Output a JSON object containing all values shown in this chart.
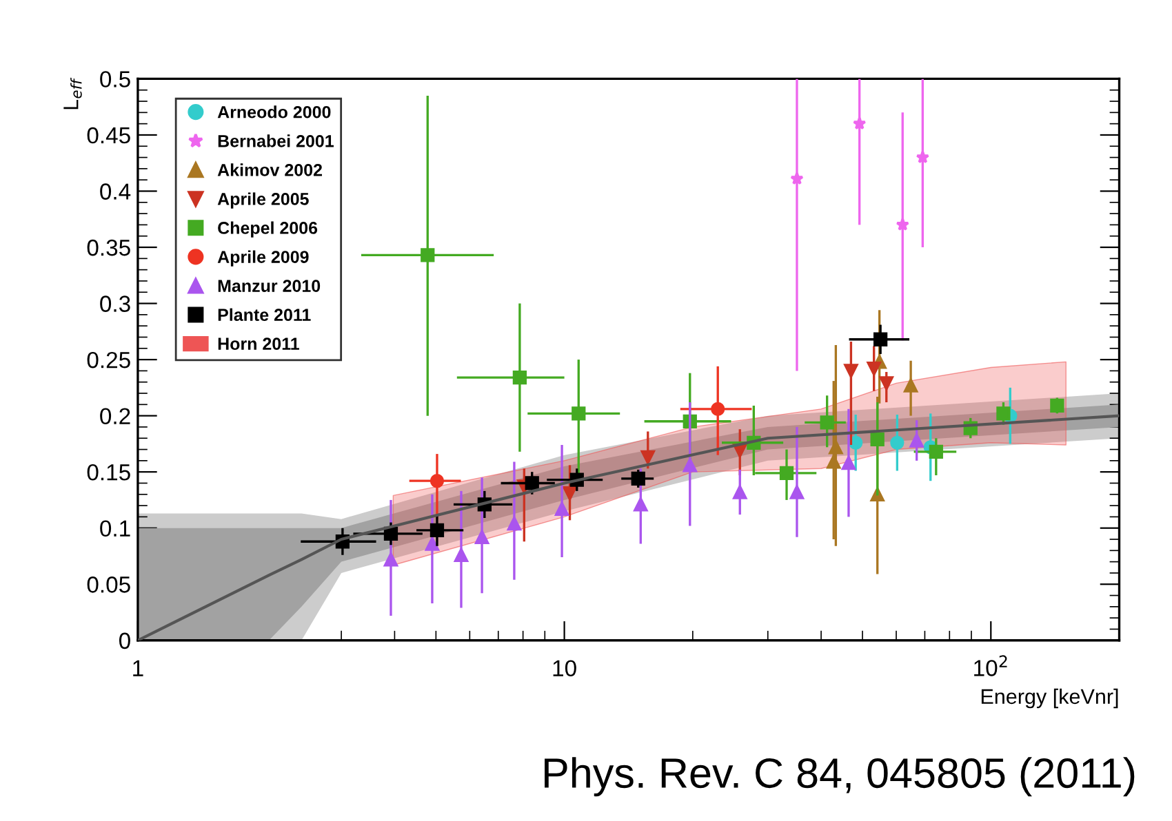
{
  "chart_data": {
    "type": "scatter",
    "ylabel": "L$_{eff}$",
    "xlabel": "Energy [keVnr]",
    "log": "x",
    "xlim": [
      1,
      200
    ],
    "ylim": [
      0,
      0.5
    ],
    "xticks": [
      1,
      10,
      {
        "value": 100,
        "label": "10$^{2}$"
      }
    ],
    "yticks": [
      0,
      0.05,
      0.1,
      0.15,
      0.2,
      0.25,
      0.3,
      0.35,
      0.4,
      0.45,
      0.5
    ],
    "grid": false,
    "legend": "top left",
    "annotations": [
      "Phys. Rev. C 84, 045805 (2011)"
    ],
    "series": [
      {
        "type": "line",
        "color": "#cccccc",
        "x": [
          1,
          2.03,
          2.42,
          3,
          10,
          30,
          200
        ],
        "values": [
          null,
          null,
          null,
          null,
          null,
          null,
          null
        ],
        "lower": [
          0,
          0,
          0,
          0.06,
          0.115,
          0.16,
          0.18
        ],
        "upper": [
          0.113,
          0.113,
          0.113,
          0.108,
          0.165,
          0.2,
          0.22
        ]
      },
      {
        "type": "line",
        "color": "#555555",
        "x": [
          1,
          2.03,
          2.42,
          3,
          10,
          30,
          200
        ],
        "values": [
          0,
          0.058,
          0.072,
          0.09,
          0.14,
          0.18,
          0.2
        ],
        "lower": [
          0,
          0,
          0.03,
          0.07,
          0.125,
          0.17,
          0.19
        ],
        "upper": [
          0.1,
          0.1,
          0.1,
          0.1,
          0.155,
          0.19,
          0.21
        ]
      },
      {
        "type": "line",
        "name": "Horn 2011",
        "color": "#ee5555",
        "x": [
          3.97,
          10,
          20,
          40,
          60,
          100,
          150
        ],
        "values": [
          null,
          null,
          null,
          null,
          null,
          null,
          null
        ],
        "lower": [
          0.067,
          0.11,
          0.15,
          0.153,
          0.17,
          0.176,
          0.174
        ],
        "upper": [
          0.129,
          0.16,
          0.19,
          0.206,
          0.229,
          0.243,
          0.248
        ]
      },
      {
        "name": "Arneodo 2000",
        "color": "#33cccc",
        "marker": "circle",
        "x": [
          48.2,
          60.3,
          72.2,
          111
        ],
        "values": [
          0.176,
          0.176,
          0.172,
          0.2
        ],
        "errors": [
          0.025,
          0.025,
          0.03,
          0.025
        ]
      },
      {
        "name": "Bernabei 2001",
        "color": "#ee66ee",
        "marker": "star",
        "x": [
          35.1,
          49.2,
          62.1,
          69.2
        ],
        "values": [
          0.411,
          0.46,
          0.37,
          0.43
        ],
        "errors": [
          [
            0.24,
            0.5
          ],
          [
            0.37,
            0.5
          ],
          [
            0.267,
            0.47
          ],
          [
            0.35,
            0.5
          ]
        ]
      },
      {
        "name": "Akimov 2002",
        "color": "#aa7722",
        "marker": "triangle",
        "x": [
          42.8,
          43.3,
          54.2,
          54.8,
          64.9
        ],
        "values": [
          0.159,
          0.172,
          0.13,
          0.248,
          0.227
        ],
        "errors": [
          [
            0.09,
            0.231
          ],
          [
            0.084,
            0.263
          ],
          [
            0.059,
            0.217
          ],
          [
            0.211,
            0.294
          ],
          [
            0.2,
            0.249
          ]
        ]
      },
      {
        "name": "Aprile 2005",
        "color": "#cc3322",
        "marker": "triangle_down",
        "x": [
          8.05,
          10.3,
          15.7,
          25.8,
          47,
          53.2,
          56.9
        ],
        "values": [
          0.137,
          0.131,
          0.163,
          0.169,
          0.24,
          0.242,
          0.229
        ],
        "errors": [
          [
            0.088,
            0.153
          ],
          [
            0.107,
            0.156
          ],
          [
            0.153,
            0.186
          ],
          [
            0.147,
            0.188
          ],
          [
            0.174,
            0.266
          ],
          0.02,
          [
            0.212,
            0.239
          ]
        ]
      },
      {
        "name": "Chepel 2006",
        "color": "#44aa22",
        "marker": "square",
        "x": [
          4.78,
          7.86,
          10.8,
          19.7,
          27.8,
          33.2,
          41.3,
          54.2,
          74.4,
          89.6,
          107,
          143
        ],
        "values": [
          0.343,
          0.234,
          0.202,
          0.195,
          0.176,
          0.149,
          0.194,
          0.179,
          0.168,
          0.189,
          0.202,
          0.209
        ],
        "errors": [
          [
            0.2,
            0.485
          ],
          [
            0.168,
            0.3
          ],
          [
            0.145,
            0.25
          ],
          [
            0.15,
            0.238
          ],
          [
            0.147,
            0.209
          ],
          [
            0.125,
            0.17
          ],
          [
            0.172,
            0.218
          ],
          [
            0.129,
            0.212
          ],
          [
            0.147,
            0.18
          ],
          0.009,
          0.01,
          0.007
        ],
        "xerrors": [
          [
            3.34,
            6.83
          ],
          [
            5.6,
            10
          ],
          [
            8.2,
            13.5
          ],
          [
            15.4,
            24.6
          ],
          [
            23.4,
            32.6
          ],
          [
            28,
            39
          ],
          [
            36.6,
            45.7
          ],
          null,
          [
            66,
            83
          ],
          null,
          null,
          null
        ]
      },
      {
        "name": "Aprile 2009",
        "color": "#ee3322",
        "marker": "circle",
        "x": [
          5.03,
          22.9
        ],
        "values": [
          0.142,
          0.206
        ],
        "errors": [
          [
            0.108,
            0.166
          ],
          [
            0.165,
            0.244
          ]
        ],
        "xerrors": [
          [
            4.33,
            5.72
          ],
          [
            18.7,
            27.5
          ]
        ]
      },
      {
        "name": "Manzur 2010",
        "color": "#aa55ee",
        "marker": "triangle",
        "x": [
          3.92,
          4.9,
          5.73,
          6.41,
          7.63,
          9.87,
          15.1,
          19.7,
          25.8,
          35.1,
          46.4,
          67
        ],
        "values": [
          0.072,
          0.086,
          0.076,
          0.092,
          0.104,
          0.117,
          0.121,
          0.156,
          0.132,
          0.132,
          0.158,
          0.178
        ],
        "errors": [
          [
            0.022,
            0.125
          ],
          [
            0.033,
            0.13
          ],
          [
            0.029,
            0.133
          ],
          [
            0.042,
            0.145
          ],
          [
            0.054,
            0.159
          ],
          [
            0.074,
            0.174
          ],
          [
            0.086,
            0.153
          ],
          [
            0.102,
            0.212
          ],
          0.02,
          [
            0.092,
            0.19
          ],
          [
            0.11,
            0.206
          ],
          0.018
        ]
      },
      {
        "name": "Plante 2011",
        "color": "#000000",
        "marker": "square",
        "x": [
          3.02,
          3.92,
          5.03,
          6.5,
          8.4,
          10.7,
          14.9,
          55.1
        ],
        "values": [
          0.088,
          0.095,
          0.098,
          0.121,
          0.14,
          0.143,
          0.144,
          0.268
        ],
        "errors": [
          0.012,
          0.01,
          0.014,
          0.012,
          0.01,
          0.01,
          0.008,
          0.013
        ],
        "xerrors": [
          [
            2.41,
            3.62
          ],
          [
            3.2,
            4.65
          ],
          [
            4.5,
            5.8
          ],
          [
            5.5,
            7.55
          ],
          [
            7.1,
            9.5
          ],
          [
            9.1,
            12.3
          ],
          [
            13.6,
            16.2
          ],
          [
            46.5,
            64.4
          ]
        ]
      }
    ]
  }
}
